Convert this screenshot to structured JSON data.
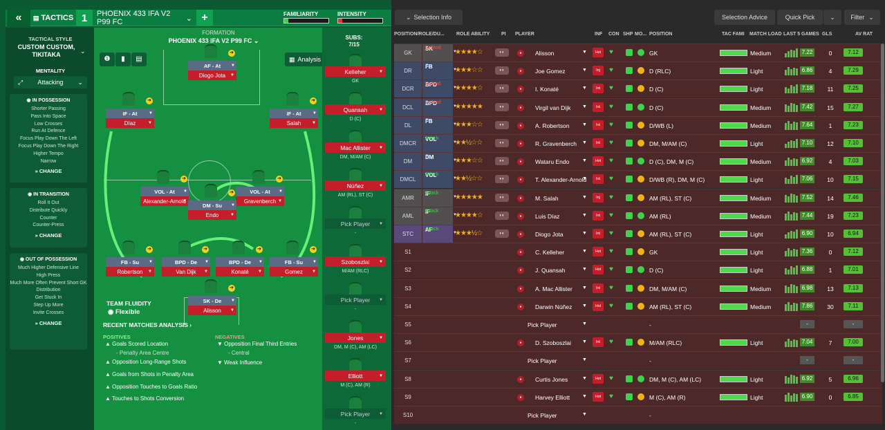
{
  "topbar": {
    "back_label": "«",
    "tactics_label": "TACTICS",
    "tactic_slot": "1",
    "tactic_name": "PHOENIX 433 IFA V2 P99 FC",
    "add_label": "+",
    "familiarity_label": "FAMILIARITY",
    "intensity_label": "INTENSITY",
    "familiarity": 0.1,
    "intensity": 0.1
  },
  "sidebar": {
    "style_label": "TACTICAL STYLE",
    "style_value": "CUSTOM CUSTOM, TIKITAKA",
    "mentality_label": "MENTALITY",
    "mentality_value": "Attacking",
    "in_possession": {
      "title": "IN POSSESSION",
      "items": [
        "Shorter Passing",
        "Pass Into Space",
        "Low Crosses",
        "Run At Defence",
        "Focus Play Down The Left",
        "Focus Play Down The Right",
        "Higher Tempo",
        "Narrow"
      ],
      "change": "CHANGE"
    },
    "in_transition": {
      "title": "IN TRANSITION",
      "items": [
        "Roll It Out",
        "Distribute Quickly",
        "Counter",
        "Counter-Press"
      ],
      "change": "CHANGE"
    },
    "out_of_possession": {
      "title": "OUT OF POSSESSION",
      "items": [
        "Much Higher Defensive Line",
        "High Press",
        "Much More Often Prevent Short GK Distribution",
        "Get Stuck In",
        "Step Up More",
        "Invite Crosses"
      ],
      "change": "CHANGE"
    }
  },
  "formation": {
    "label": "FORMATION",
    "name": "PHOENIX 433 IFA V2 P99 FC",
    "analysis_label": "Analysis",
    "players": [
      {
        "role": "AF - At",
        "name": "Diogo Jota"
      },
      {
        "role": "IF - At",
        "name": "Díaz"
      },
      {
        "role": "IF - At",
        "name": "Salah"
      },
      {
        "role": "VOL - At",
        "name": "Alexander-Arnold"
      },
      {
        "role": "VOL - At",
        "name": "Gravenberch"
      },
      {
        "role": "DM - Su",
        "name": "Endo"
      },
      {
        "role": "FB - Su",
        "name": "Robertson"
      },
      {
        "role": "BPD - De",
        "name": "Van Dijk"
      },
      {
        "role": "BPD - De",
        "name": "Konaté"
      },
      {
        "role": "FB - Su",
        "name": "Gomez"
      },
      {
        "role": "SK - De",
        "name": "Alisson"
      }
    ]
  },
  "fluidity": {
    "label": "TEAM FLUIDITY",
    "value": "Flexible"
  },
  "analysis": {
    "title": "RECENT MATCHES ANALYSIS ›",
    "positives_label": "POSITIVES",
    "negatives_label": "NEGATIVES",
    "positives": [
      "Goals Scored Location",
      "- Penalty Area Centre",
      "Opposition Long-Range Shots",
      "Goals from Shots in Penalty Area",
      "Opposition Touches to Goals Ratio",
      "Touches to Shots Conversion"
    ],
    "negatives": [
      "Opposition Final Third Entries",
      "- Central",
      "Weak Influence"
    ]
  },
  "subs": {
    "label": "SUBS:",
    "count": "7/15",
    "items": [
      {
        "name": "Kelleher",
        "pos": "GK"
      },
      {
        "name": "Quansah",
        "pos": "D (C)"
      },
      {
        "name": "Mac Allister",
        "pos": "DM, M/AM (C)"
      },
      {
        "name": "Núñez",
        "pos": "AM (RL), ST (C)"
      },
      {
        "name": "Pick Player",
        "pos": "-"
      },
      {
        "name": "Szoboszlai",
        "pos": "M/AM (RLC)"
      },
      {
        "name": "Pick Player",
        "pos": "-"
      },
      {
        "name": "Jones",
        "pos": "DM, M (C), AM (LC)"
      },
      {
        "name": "Elliott",
        "pos": "M (C), AM (R)"
      },
      {
        "name": "Pick Player",
        "pos": "-"
      }
    ]
  },
  "header_buttons": {
    "selection_info": "Selection Info",
    "selection_advice": "Selection Advice",
    "quick_pick": "Quick Pick",
    "filter": "Filter"
  },
  "columns": [
    "POSITION/ROLE/DU...",
    "ROLE ABILITY",
    "PI",
    "PLAYER",
    "INF",
    "CON",
    "SHP",
    "MO...",
    "POSITION",
    "TAC FAMI",
    "MATCH LOAD",
    "LAST 5 GAMES",
    "GLS",
    "AV RAT"
  ],
  "rows": [
    {
      "pos": "GK",
      "role": "SK",
      "duty": "Defend",
      "duty_color": "#e05a4a",
      "bg": "#514f4f",
      "stars": "★★★★☆",
      "name": "Alisson",
      "inf": "Hol",
      "position": "GK",
      "load": "Medium",
      "last5": "7.22",
      "gls": "0",
      "avrat": "7.12"
    },
    {
      "pos": "DR",
      "role": "FB",
      "duty": "Su",
      "duty_color": "#9ab8ff",
      "bg": "#3e4a66",
      "stars": "★★★☆☆",
      "name": "Joe Gomez",
      "inf": "Inj",
      "position": "D (RLC)",
      "load": "Light",
      "last5": "6.86",
      "gls": "4",
      "avrat": "7.29"
    },
    {
      "pos": "DCR",
      "role": "BPD",
      "duty": "Defend",
      "duty_color": "#e05a4a",
      "bg": "#3e4a66",
      "stars": "★★★★☆",
      "name": "I. Konaté",
      "inf": "Int",
      "position": "D (C)",
      "load": "Light",
      "last5": "7.18",
      "gls": "11",
      "avrat": "7.25"
    },
    {
      "pos": "DCL",
      "role": "BPD",
      "duty": "Defend",
      "duty_color": "#e05a4a",
      "bg": "#3e4a66",
      "stars": "★★★★★",
      "name": "Virgil van Dijk",
      "inf": "Int",
      "position": "D (C)",
      "load": "Medium",
      "last5": "7.42",
      "gls": "15",
      "avrat": "7.27"
    },
    {
      "pos": "DL",
      "role": "FB",
      "duty": "Su",
      "duty_color": "#9ab8ff",
      "bg": "#3e4a66",
      "stars": "★★★☆☆",
      "name": "A. Robertson",
      "inf": "Int",
      "position": "D/WB (L)",
      "load": "Medium",
      "last5": "7.64",
      "gls": "1",
      "avrat": "7.23"
    },
    {
      "pos": "DMCR",
      "role": "VOL",
      "duty": "Attack",
      "duty_color": "#3fd24b",
      "bg": "#3e4a66",
      "stars": "★★½☆☆",
      "name": "R. Gravenberch",
      "inf": "Int",
      "position": "DM, M/AM (C)",
      "load": "Light",
      "last5": "7.10",
      "gls": "12",
      "avrat": "7.10"
    },
    {
      "pos": "DM",
      "role": "DM",
      "duty": "Su",
      "duty_color": "#9ab8ff",
      "bg": "#3e4a66",
      "stars": "★★★☆☆",
      "name": "Wataru Endo",
      "inf": "Hol",
      "position": "D (C), DM, M (C)",
      "load": "Medium",
      "last5": "6.92",
      "gls": "4",
      "avrat": "7.03"
    },
    {
      "pos": "DMCL",
      "role": "VOL",
      "duty": "Attack",
      "duty_color": "#3fd24b",
      "bg": "#3e4a66",
      "stars": "★★½☆☆",
      "name": "T. Alexander-Arnold",
      "inf": "Int",
      "position": "D/WB (R), DM, M (C)",
      "load": "Light",
      "last5": "7.06",
      "gls": "10",
      "avrat": "7.15"
    },
    {
      "pos": "AMR",
      "role": "IF",
      "duty": "Attack",
      "duty_color": "#3fd24b",
      "bg": "#514f4f",
      "stars": "★★★★★",
      "name": "M. Salah",
      "inf": "Inj",
      "position": "AM (RL), ST (C)",
      "load": "Medium",
      "last5": "7.52",
      "gls": "14",
      "avrat": "7.46"
    },
    {
      "pos": "AML",
      "role": "IF",
      "duty": "Attack",
      "duty_color": "#3fd24b",
      "bg": "#514f4f",
      "stars": "★★★★☆",
      "name": "Luis Díaz",
      "inf": "Int",
      "position": "AM (RL)",
      "load": "Medium",
      "last5": "7.44",
      "gls": "19",
      "avrat": "7.23"
    },
    {
      "pos": "STC",
      "role": "AF",
      "duty": "Attack",
      "duty_color": "#3fd24b",
      "bg": "#5a4a7a",
      "stars": "★★★½☆",
      "name": "Diogo Jota",
      "inf": "Int",
      "position": "AM (RL), ST (C)",
      "load": "Light",
      "last5": "6.90",
      "gls": "10",
      "avrat": "6.94"
    },
    {
      "pos": "S1",
      "role": "",
      "duty": "",
      "duty_color": "#fff",
      "bg": "",
      "stars": "",
      "name": "C. Kelleher",
      "inf": "Hol",
      "position": "GK",
      "load": "Light",
      "last5": "7.36",
      "gls": "0",
      "avrat": "7.12"
    },
    {
      "pos": "S2",
      "role": "",
      "duty": "",
      "duty_color": "#fff",
      "bg": "",
      "stars": "",
      "name": "J. Quansah",
      "inf": "Hol",
      "position": "D (C)",
      "load": "Light",
      "last5": "6.88",
      "gls": "1",
      "avrat": "7.01"
    },
    {
      "pos": "S3",
      "role": "",
      "duty": "",
      "duty_color": "#fff",
      "bg": "",
      "stars": "",
      "name": "A. Mac Allister",
      "inf": "Int",
      "position": "DM, M/AM (C)",
      "load": "Medium",
      "last5": "6.98",
      "gls": "13",
      "avrat": "7.13"
    },
    {
      "pos": "S4",
      "role": "",
      "duty": "",
      "duty_color": "#fff",
      "bg": "",
      "stars": "",
      "name": "Darwin Núñez",
      "inf": "Hol",
      "position": "AM (RL), ST (C)",
      "load": "Medium",
      "last5": "7.86",
      "gls": "30",
      "avrat": "7.11"
    },
    {
      "pos": "S5",
      "role": "",
      "duty": "",
      "duty_color": "#fff",
      "bg": "",
      "stars": "",
      "name": "Pick Player",
      "inf": "",
      "position": "-",
      "load": "",
      "last5": "-",
      "gls": "",
      "avrat": "-"
    },
    {
      "pos": "S6",
      "role": "",
      "duty": "",
      "duty_color": "#fff",
      "bg": "",
      "stars": "",
      "name": "D. Szoboszlai",
      "inf": "Int",
      "position": "M/AM (RLC)",
      "load": "Light",
      "last5": "7.04",
      "gls": "7",
      "avrat": "7.00"
    },
    {
      "pos": "S7",
      "role": "",
      "duty": "",
      "duty_color": "#fff",
      "bg": "",
      "stars": "",
      "name": "Pick Player",
      "inf": "",
      "position": "-",
      "load": "",
      "last5": "-",
      "gls": "",
      "avrat": "-"
    },
    {
      "pos": "S8",
      "role": "",
      "duty": "",
      "duty_color": "#fff",
      "bg": "",
      "stars": "",
      "name": "Curtis Jones",
      "inf": "Hol",
      "position": "DM, M (C), AM (LC)",
      "load": "Light",
      "last5": "6.92",
      "gls": "5",
      "avrat": "6.96"
    },
    {
      "pos": "S9",
      "role": "",
      "duty": "",
      "duty_color": "#fff",
      "bg": "",
      "stars": "",
      "name": "Harvey Elliott",
      "inf": "Hol",
      "position": "M (C), AM (R)",
      "load": "Light",
      "last5": "6.90",
      "gls": "0",
      "avrat": "6.85"
    },
    {
      "pos": "S10",
      "role": "",
      "duty": "",
      "duty_color": "#fff",
      "bg": "",
      "stars": "",
      "name": "Pick Player",
      "inf": "",
      "position": "-",
      "load": "",
      "last5": "",
      "gls": "",
      "avrat": ""
    }
  ]
}
